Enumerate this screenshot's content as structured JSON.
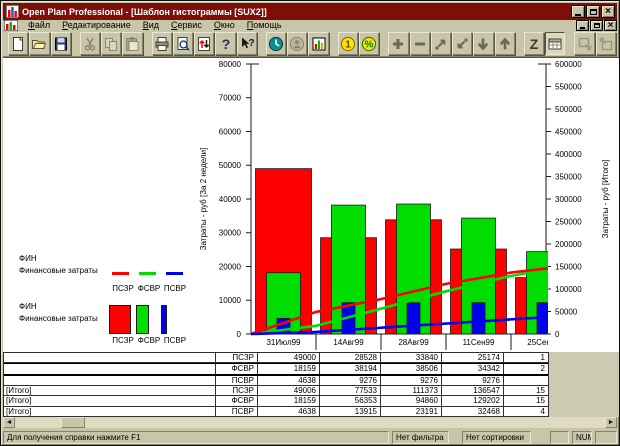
{
  "window": {
    "title": "Open Plan Professional - [Шаблон гистограммы [SUX2]]",
    "controls": [
      "minimize",
      "restore",
      "close"
    ]
  },
  "menu": {
    "items": [
      {
        "label": "Файл"
      },
      {
        "label": "Редактирование"
      },
      {
        "label": "Вид"
      },
      {
        "label": "Сервис"
      },
      {
        "label": "Окно"
      },
      {
        "label": "Помощь"
      }
    ]
  },
  "toolbar": {
    "buttons": [
      {
        "icon": "new-file-icon"
      },
      {
        "icon": "open-file-icon"
      },
      {
        "icon": "save-file-icon"
      },
      {
        "separator": true
      },
      {
        "icon": "cut-icon",
        "disabled": true
      },
      {
        "icon": "copy-icon",
        "disabled": true
      },
      {
        "icon": "paste-icon",
        "disabled": true
      },
      {
        "separator": true
      },
      {
        "icon": "print-icon"
      },
      {
        "icon": "print-preview-icon"
      },
      {
        "icon": "rollup-icon"
      },
      {
        "icon": "help-icon"
      },
      {
        "icon": "context-help-icon"
      },
      {
        "separator": true
      },
      {
        "icon": "time-analysis-icon"
      },
      {
        "icon": "resource-icon",
        "disabled": true
      },
      {
        "icon": "histogram-view-icon"
      },
      {
        "separator": true
      },
      {
        "icon": "currency-icon"
      },
      {
        "icon": "percent-icon"
      },
      {
        "separator": true
      },
      {
        "icon": "add-icon"
      },
      {
        "icon": "remove-icon"
      },
      {
        "icon": "move-out-icon"
      },
      {
        "icon": "move-in-icon"
      },
      {
        "icon": "move-down-icon"
      },
      {
        "icon": "move-up-icon"
      },
      {
        "separator": true
      },
      {
        "icon": "timescale-z-icon"
      },
      {
        "icon": "spreadsheet-view-icon",
        "pressed": true
      },
      {
        "separator": true
      },
      {
        "icon": "window-link-icon",
        "disabled": true
      },
      {
        "icon": "window-link2-icon",
        "disabled": true
      }
    ]
  },
  "chart_data": {
    "type": "bar+line",
    "categories": [
      "31Июл99",
      "14Авг99",
      "28Авг99",
      "11Сен99",
      "25Сен99"
    ],
    "bar_series": [
      {
        "name": "ПСЗР",
        "color": "#ff0000",
        "values": [
          49000,
          28528,
          33840,
          25174,
          16700
        ]
      },
      {
        "name": "ФСВР",
        "color": "#00dd00",
        "values": [
          18159,
          38194,
          38506,
          34342,
          24400
        ]
      },
      {
        "name": "ПСВР",
        "color": "#0000ee",
        "values": [
          4638,
          9276,
          9276,
          9276,
          9276
        ]
      }
    ],
    "line_series": [
      {
        "name": "ПСЗР",
        "color": "#ff0000",
        "values": [
          49006,
          77533,
          111373,
          136547,
          153000
        ]
      },
      {
        "name": "ФСВР",
        "color": "#00dd00",
        "values": [
          18159,
          56353,
          94860,
          129202,
          153500
        ]
      },
      {
        "name": "ПСВР",
        "color": "#0000ee",
        "values": [
          4638,
          13915,
          23191,
          32468,
          41700
        ]
      }
    ],
    "left_axis": {
      "label": "Затраты - руб [За 2 недели]",
      "min": 0,
      "max": 80000,
      "step": 10000
    },
    "right_axis": {
      "label": "Затраты - руб [Итого]",
      "min": 0,
      "max": 600000,
      "step": 50000
    },
    "grid": false,
    "legend_position": "left"
  },
  "legend": {
    "blocks": [
      {
        "title": "ФИН",
        "subtitle": "Финансовые затраты",
        "style": "line",
        "items": [
          {
            "label": "ПСЗР",
            "color": "#ff0000"
          },
          {
            "label": "ФСВР",
            "color": "#00dd00"
          },
          {
            "label": "ПСВР",
            "color": "#0000ee"
          }
        ]
      },
      {
        "title": "ФИН",
        "subtitle": "Финансовые затраты",
        "style": "bar",
        "items": [
          {
            "label": "ПСЗР",
            "color": "#ff0000"
          },
          {
            "label": "ФСВР",
            "color": "#00dd00"
          },
          {
            "label": "ПСВР",
            "color": "#0000ee"
          }
        ]
      }
    ]
  },
  "table": {
    "rows": [
      {
        "group": "",
        "code": "ПСЗР",
        "values": [
          "49000",
          "28528",
          "33840",
          "25174",
          "1"
        ]
      },
      {
        "group": "",
        "code": "ФСВР",
        "values": [
          "18159",
          "38194",
          "38506",
          "34342",
          "2"
        ],
        "emphasized": true
      },
      {
        "group": "",
        "code": "ПСВР",
        "values": [
          "4638",
          "9276",
          "9276",
          "9276",
          ""
        ]
      },
      {
        "group": "[Итого]",
        "code": "ПСЗР",
        "values": [
          "49006",
          "77533",
          "111373",
          "136547",
          "15"
        ]
      },
      {
        "group": "[Итого]",
        "code": "ФСВР",
        "values": [
          "18159",
          "56353",
          "94860",
          "129202",
          "15"
        ]
      },
      {
        "group": "[Итого]",
        "code": "ПСВР",
        "values": [
          "4638",
          "13915",
          "23191",
          "32468",
          "4"
        ]
      }
    ]
  },
  "statusbar": {
    "help_text": "Для получения справки нажмите F1",
    "filter": "Нет фильтра",
    "sort": "Нет сортировки",
    "num": "NUM"
  }
}
